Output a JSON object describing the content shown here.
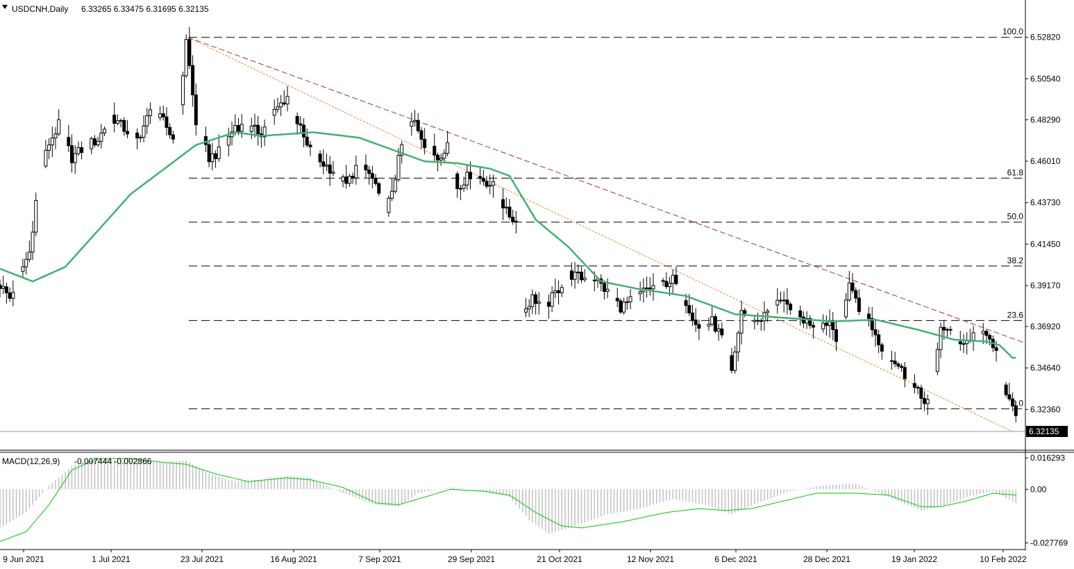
{
  "header": {
    "symbol": "USDCNH,Daily",
    "ohlc": "6.33265 6.33475 6.31695 6.32135",
    "arrow_icon": "triangle-down-icon"
  },
  "chart_data": [
    {
      "type": "candlestick",
      "ylim": [
        6.31,
        6.5365
      ],
      "y_ticks": [
        "6.52820",
        "6.50540",
        "6.48290",
        "6.46010",
        "6.43730",
        "6.41450",
        "6.39170",
        "6.36920",
        "6.34640",
        "6.32360"
      ],
      "x_ticks": [
        "9 Jun 2021",
        "1 Jul 2021",
        "23 Jul 2021",
        "16 Aug 2021",
        "7 Sep 2021",
        "29 Sep 2021",
        "21 Oct 2021",
        "12 Nov 2021",
        "6 Dec 2021",
        "28 Dec 2021",
        "19 Jan 2022",
        "10 Feb 2022"
      ],
      "last_price": "6.32135",
      "grid": false,
      "fibonacci": [
        {
          "label": "100.0",
          "value": 6.5282
        },
        {
          "label": "61.8",
          "value": 6.4508
        },
        {
          "label": "50.0",
          "value": 6.4266
        },
        {
          "label": "38.2",
          "value": 6.4025
        },
        {
          "label": "23.6",
          "value": 6.3725
        },
        {
          "label": "0.0",
          "value": 6.324
        }
      ],
      "moving_average_color": "#3cb371",
      "trendline_colors": [
        "#a0303a",
        "#e08a2a"
      ],
      "ma_anchors": [
        {
          "d": 0,
          "v": 6.401
        },
        {
          "d": 10,
          "v": 6.394
        },
        {
          "d": 20,
          "v": 6.402
        },
        {
          "d": 40,
          "v": 6.442
        },
        {
          "d": 60,
          "v": 6.469
        },
        {
          "d": 72,
          "v": 6.476
        },
        {
          "d": 80,
          "v": 6.474
        },
        {
          "d": 96,
          "v": 6.476
        },
        {
          "d": 110,
          "v": 6.473
        },
        {
          "d": 130,
          "v": 6.46
        },
        {
          "d": 140,
          "v": 6.459
        },
        {
          "d": 150,
          "v": 6.456
        },
        {
          "d": 156,
          "v": 6.452
        },
        {
          "d": 164,
          "v": 6.428
        },
        {
          "d": 174,
          "v": 6.413
        },
        {
          "d": 184,
          "v": 6.394
        },
        {
          "d": 195,
          "v": 6.39
        },
        {
          "d": 210,
          "v": 6.386
        },
        {
          "d": 225,
          "v": 6.376
        },
        {
          "d": 240,
          "v": 6.374
        },
        {
          "d": 255,
          "v": 6.372
        },
        {
          "d": 268,
          "v": 6.373
        },
        {
          "d": 282,
          "v": 6.367
        },
        {
          "d": 292,
          "v": 6.362
        },
        {
          "d": 302,
          "v": 6.361
        },
        {
          "d": 306,
          "v": 6.359
        },
        {
          "d": 310,
          "v": 6.352
        }
      ],
      "price_anchors": [
        {
          "d": 0,
          "v": 6.392
        },
        {
          "d": 3,
          "v": 6.385
        },
        {
          "d": 6,
          "v": 6.398
        },
        {
          "d": 9,
          "v": 6.41
        },
        {
          "d": 12,
          "v": 6.452
        },
        {
          "d": 15,
          "v": 6.47
        },
        {
          "d": 18,
          "v": 6.48
        },
        {
          "d": 22,
          "v": 6.462
        },
        {
          "d": 26,
          "v": 6.468
        },
        {
          "d": 30,
          "v": 6.472
        },
        {
          "d": 34,
          "v": 6.485
        },
        {
          "d": 38,
          "v": 6.478
        },
        {
          "d": 42,
          "v": 6.472
        },
        {
          "d": 46,
          "v": 6.487
        },
        {
          "d": 50,
          "v": 6.482
        },
        {
          "d": 54,
          "v": 6.469
        },
        {
          "d": 57,
          "v": 6.528
        },
        {
          "d": 60,
          "v": 6.48
        },
        {
          "d": 64,
          "v": 6.462
        },
        {
          "d": 68,
          "v": 6.466
        },
        {
          "d": 72,
          "v": 6.48
        },
        {
          "d": 76,
          "v": 6.478
        },
        {
          "d": 80,
          "v": 6.476
        },
        {
          "d": 84,
          "v": 6.487
        },
        {
          "d": 88,
          "v": 6.496
        },
        {
          "d": 91,
          "v": 6.482
        },
        {
          "d": 94,
          "v": 6.468
        },
        {
          "d": 98,
          "v": 6.46
        },
        {
          "d": 102,
          "v": 6.455
        },
        {
          "d": 106,
          "v": 6.447
        },
        {
          "d": 110,
          "v": 6.46
        },
        {
          "d": 114,
          "v": 6.45
        },
        {
          "d": 118,
          "v": 6.43
        },
        {
          "d": 121,
          "v": 6.452
        },
        {
          "d": 124,
          "v": 6.477
        },
        {
          "d": 127,
          "v": 6.482
        },
        {
          "d": 130,
          "v": 6.47
        },
        {
          "d": 134,
          "v": 6.462
        },
        {
          "d": 137,
          "v": 6.47
        },
        {
          "d": 140,
          "v": 6.446
        },
        {
          "d": 144,
          "v": 6.453
        },
        {
          "d": 148,
          "v": 6.45
        },
        {
          "d": 152,
          "v": 6.445
        },
        {
          "d": 155,
          "v": 6.432
        },
        {
          "d": 158,
          "v": 6.427
        },
        {
          "d": 160,
          "v": 6.377
        },
        {
          "d": 163,
          "v": 6.385
        },
        {
          "d": 167,
          "v": 6.38
        },
        {
          "d": 171,
          "v": 6.39
        },
        {
          "d": 174,
          "v": 6.398
        },
        {
          "d": 178,
          "v": 6.396
        },
        {
          "d": 182,
          "v": 6.396
        },
        {
          "d": 186,
          "v": 6.388
        },
        {
          "d": 190,
          "v": 6.38
        },
        {
          "d": 194,
          "v": 6.384
        },
        {
          "d": 198,
          "v": 6.39
        },
        {
          "d": 202,
          "v": 6.392
        },
        {
          "d": 206,
          "v": 6.395
        },
        {
          "d": 210,
          "v": 6.383
        },
        {
          "d": 214,
          "v": 6.368
        },
        {
          "d": 218,
          "v": 6.372
        },
        {
          "d": 222,
          "v": 6.36
        },
        {
          "d": 224,
          "v": 6.343
        },
        {
          "d": 227,
          "v": 6.378
        },
        {
          "d": 231,
          "v": 6.372
        },
        {
          "d": 234,
          "v": 6.375
        },
        {
          "d": 238,
          "v": 6.385
        },
        {
          "d": 242,
          "v": 6.377
        },
        {
          "d": 246,
          "v": 6.373
        },
        {
          "d": 250,
          "v": 6.37
        },
        {
          "d": 254,
          "v": 6.372
        },
        {
          "d": 257,
          "v": 6.36
        },
        {
          "d": 260,
          "v": 6.395
        },
        {
          "d": 263,
          "v": 6.378
        },
        {
          "d": 266,
          "v": 6.373
        },
        {
          "d": 270,
          "v": 6.356
        },
        {
          "d": 274,
          "v": 6.35
        },
        {
          "d": 278,
          "v": 6.34
        },
        {
          "d": 282,
          "v": 6.33
        },
        {
          "d": 285,
          "v": 6.328
        },
        {
          "d": 288,
          "v": 6.37
        },
        {
          "d": 291,
          "v": 6.365
        },
        {
          "d": 295,
          "v": 6.36
        },
        {
          "d": 299,
          "v": 6.366
        },
        {
          "d": 303,
          "v": 6.362
        },
        {
          "d": 306,
          "v": 6.35
        },
        {
          "d": 308,
          "v": 6.329
        },
        {
          "d": 311,
          "v": 6.3225
        }
      ]
    },
    {
      "type": "macd",
      "title": "MACD(12,26,9)",
      "values_text": "-0.007444 -0.002866",
      "ylim": [
        -0.0305,
        0.0185
      ],
      "y_ticks": [
        "0.016293",
        "0.00",
        "-0.027769"
      ],
      "signal_color": "#00c800",
      "histogram_color": "#c0c0c0",
      "hist_anchors": [
        {
          "d": 0,
          "v": -0.02
        },
        {
          "d": 8,
          "v": -0.012
        },
        {
          "d": 15,
          "v": 0.002
        },
        {
          "d": 22,
          "v": 0.012
        },
        {
          "d": 30,
          "v": 0.016
        },
        {
          "d": 40,
          "v": 0.015
        },
        {
          "d": 50,
          "v": 0.014
        },
        {
          "d": 57,
          "v": 0.015
        },
        {
          "d": 64,
          "v": 0.008
        },
        {
          "d": 72,
          "v": 0.004
        },
        {
          "d": 80,
          "v": 0.005
        },
        {
          "d": 88,
          "v": 0.007
        },
        {
          "d": 95,
          "v": 0.006
        },
        {
          "d": 105,
          "v": -0.002
        },
        {
          "d": 115,
          "v": -0.008
        },
        {
          "d": 122,
          "v": -0.009
        },
        {
          "d": 128,
          "v": -0.002
        },
        {
          "d": 138,
          "v": 0.001
        },
        {
          "d": 148,
          "v": -0.001
        },
        {
          "d": 156,
          "v": -0.004
        },
        {
          "d": 162,
          "v": -0.016
        },
        {
          "d": 168,
          "v": -0.023
        },
        {
          "d": 176,
          "v": -0.019
        },
        {
          "d": 186,
          "v": -0.013
        },
        {
          "d": 196,
          "v": -0.01
        },
        {
          "d": 206,
          "v": -0.005
        },
        {
          "d": 216,
          "v": -0.008
        },
        {
          "d": 224,
          "v": -0.013
        },
        {
          "d": 232,
          "v": -0.007
        },
        {
          "d": 242,
          "v": -0.001
        },
        {
          "d": 252,
          "v": 0.002
        },
        {
          "d": 262,
          "v": 0.003
        },
        {
          "d": 272,
          "v": -0.004
        },
        {
          "d": 282,
          "v": -0.011
        },
        {
          "d": 288,
          "v": -0.009
        },
        {
          "d": 296,
          "v": -0.004
        },
        {
          "d": 304,
          "v": -0.001
        },
        {
          "d": 311,
          "v": -0.007
        }
      ],
      "signal_anchors": [
        {
          "d": 0,
          "v": -0.027
        },
        {
          "d": 8,
          "v": -0.022
        },
        {
          "d": 15,
          "v": -0.008
        },
        {
          "d": 22,
          "v": 0.01
        },
        {
          "d": 30,
          "v": 0.016
        },
        {
          "d": 40,
          "v": 0.016
        },
        {
          "d": 50,
          "v": 0.014
        },
        {
          "d": 57,
          "v": 0.013
        },
        {
          "d": 66,
          "v": 0.008
        },
        {
          "d": 76,
          "v": 0.004
        },
        {
          "d": 88,
          "v": 0.006
        },
        {
          "d": 95,
          "v": 0.005
        },
        {
          "d": 105,
          "v": 0.001
        },
        {
          "d": 115,
          "v": -0.007
        },
        {
          "d": 122,
          "v": -0.008
        },
        {
          "d": 132,
          "v": -0.003
        },
        {
          "d": 138,
          "v": 0.0
        },
        {
          "d": 148,
          "v": -0.001
        },
        {
          "d": 156,
          "v": -0.003
        },
        {
          "d": 164,
          "v": -0.012
        },
        {
          "d": 172,
          "v": -0.019
        },
        {
          "d": 178,
          "v": -0.02
        },
        {
          "d": 190,
          "v": -0.017
        },
        {
          "d": 204,
          "v": -0.012
        },
        {
          "d": 214,
          "v": -0.01
        },
        {
          "d": 222,
          "v": -0.011
        },
        {
          "d": 230,
          "v": -0.01
        },
        {
          "d": 240,
          "v": -0.006
        },
        {
          "d": 250,
          "v": -0.002
        },
        {
          "d": 262,
          "v": -0.002
        },
        {
          "d": 272,
          "v": -0.003
        },
        {
          "d": 282,
          "v": -0.009
        },
        {
          "d": 288,
          "v": -0.009
        },
        {
          "d": 296,
          "v": -0.006
        },
        {
          "d": 304,
          "v": -0.002
        },
        {
          "d": 311,
          "v": -0.003
        }
      ]
    }
  ]
}
